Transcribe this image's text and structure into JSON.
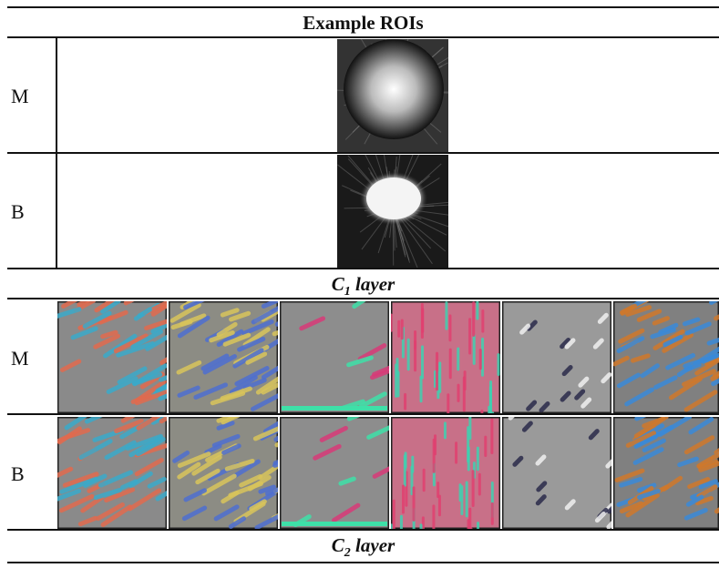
{
  "header": {
    "title": "Example ROIs"
  },
  "roi_rows": [
    {
      "label": "M"
    },
    {
      "label": "B"
    }
  ],
  "sections": [
    {
      "symbol": "C",
      "subscript": "1",
      "text": "layer",
      "rows": [
        {
          "label": "M"
        },
        {
          "label": "B"
        }
      ]
    },
    {
      "symbol": "C",
      "subscript": "2",
      "text": "layer"
    }
  ]
}
